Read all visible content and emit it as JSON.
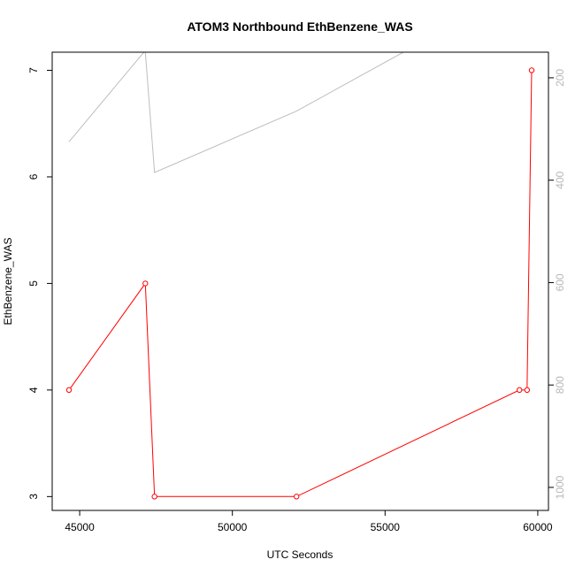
{
  "chart_data": {
    "type": "line",
    "title": "ATOM3 Northbound EthBenzene_WAS",
    "xlabel": "UTC Seconds",
    "ylabel": "EthBenzene_WAS",
    "xlim": [
      44100,
      60350
    ],
    "ylim": [
      2.87,
      7.17
    ],
    "y2lim": [
      1045,
      150
    ],
    "x_ticks": [
      45000,
      50000,
      55000,
      60000
    ],
    "y_ticks": [
      3,
      4,
      5,
      6,
      7
    ],
    "y2_ticks": [
      200,
      400,
      600,
      800,
      1000
    ],
    "grid": false,
    "series": [
      {
        "color": "#ff0000",
        "marker": "open-circle",
        "axis": "left",
        "x": [
          44650,
          47150,
          47450,
          52100,
          59400,
          59650,
          59800
        ],
        "y": [
          4,
          5,
          3,
          3,
          4,
          4,
          7
        ]
      },
      {
        "color": "#bebebe",
        "marker": "none",
        "axis": "right",
        "x": [
          44650,
          47100,
          47150,
          47450,
          52100,
          55600
        ],
        "y": [
          325,
          150,
          150,
          385,
          265,
          150
        ]
      },
      {
        "color": "#bebebe",
        "marker": "none",
        "axis": "right",
        "x": [
          59800,
          59800
        ],
        "y": [
          150,
          150
        ]
      }
    ]
  }
}
